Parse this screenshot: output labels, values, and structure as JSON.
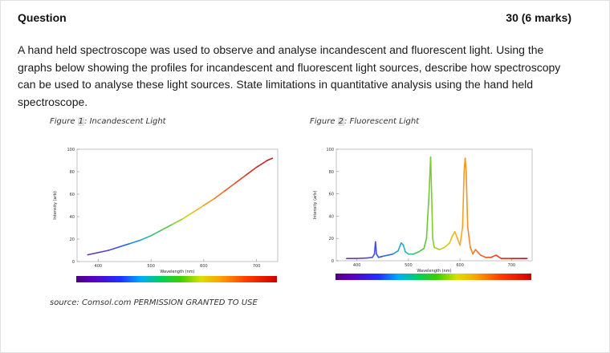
{
  "header": {
    "title": "Question",
    "marks": "30 (6 marks)"
  },
  "question": {
    "text": "A hand held spectroscope was used to observe and analyse incandescent and fluorescent light. Using the graphs below showing the profiles for incandescent and fluorescent light sources, describe how spectroscopy can be used to analyse these light sources. State limitations in quantitative analysis using the hand held spectroscope."
  },
  "figures": [
    {
      "prefix": "Figure ",
      "number": "1",
      "suffix": ": Incandescent Light"
    },
    {
      "prefix": "Figure ",
      "number": "2",
      "suffix": ": Fluorescent Light"
    }
  ],
  "source_note": "source: Comsol.com PERMISSION GRANTED TO USE",
  "chart_data": [
    {
      "type": "line",
      "title": "Figure 1: Incandescent Light",
      "xlabel": "Wavelength (nm)",
      "ylabel": "Intensity (arb)",
      "xlim": [
        360,
        740
      ],
      "ylim": [
        0,
        100
      ],
      "xticks": [
        400,
        500,
        600,
        700
      ],
      "yticks": [
        0,
        20,
        40,
        60,
        80,
        100
      ],
      "grid": false,
      "series": [
        {
          "x": [
            380,
            400,
            420,
            440,
            460,
            480,
            500,
            520,
            540,
            560,
            580,
            600,
            620,
            640,
            660,
            680,
            700,
            720,
            730
          ],
          "y": [
            6,
            8,
            10,
            13,
            16,
            19,
            23,
            28,
            33,
            38,
            44,
            50,
            56,
            63,
            70,
            77,
            84,
            90,
            92
          ]
        }
      ]
    },
    {
      "type": "line",
      "title": "Figure 2: Fluorescent Light",
      "xlabel": "Wavelength (nm)",
      "ylabel": "Intensity (arb)",
      "xlim": [
        360,
        740
      ],
      "ylim": [
        0,
        100
      ],
      "xticks": [
        400,
        500,
        600,
        700
      ],
      "yticks": [
        0,
        20,
        40,
        60,
        80,
        100
      ],
      "grid": false,
      "series": [
        {
          "x": [
            380,
            400,
            420,
            430,
            434,
            436,
            438,
            442,
            450,
            470,
            480,
            486,
            490,
            494,
            500,
            510,
            520,
            530,
            535,
            540,
            543,
            545,
            547,
            550,
            560,
            570,
            580,
            585,
            590,
            595,
            600,
            605,
            608,
            610,
            612,
            615,
            620,
            625,
            630,
            640,
            650,
            660,
            670,
            680,
            700,
            720,
            730
          ],
          "y": [
            2,
            2,
            2.5,
            3,
            6,
            17,
            6,
            3,
            4,
            6,
            9,
            16,
            14,
            8,
            6,
            6,
            8,
            11,
            20,
            60,
            93,
            60,
            20,
            12,
            10,
            12,
            16,
            22,
            26,
            20,
            14,
            30,
            80,
            92,
            80,
            30,
            12,
            6,
            10,
            5,
            3,
            3,
            5,
            2,
            2,
            2,
            2
          ]
        }
      ]
    }
  ]
}
